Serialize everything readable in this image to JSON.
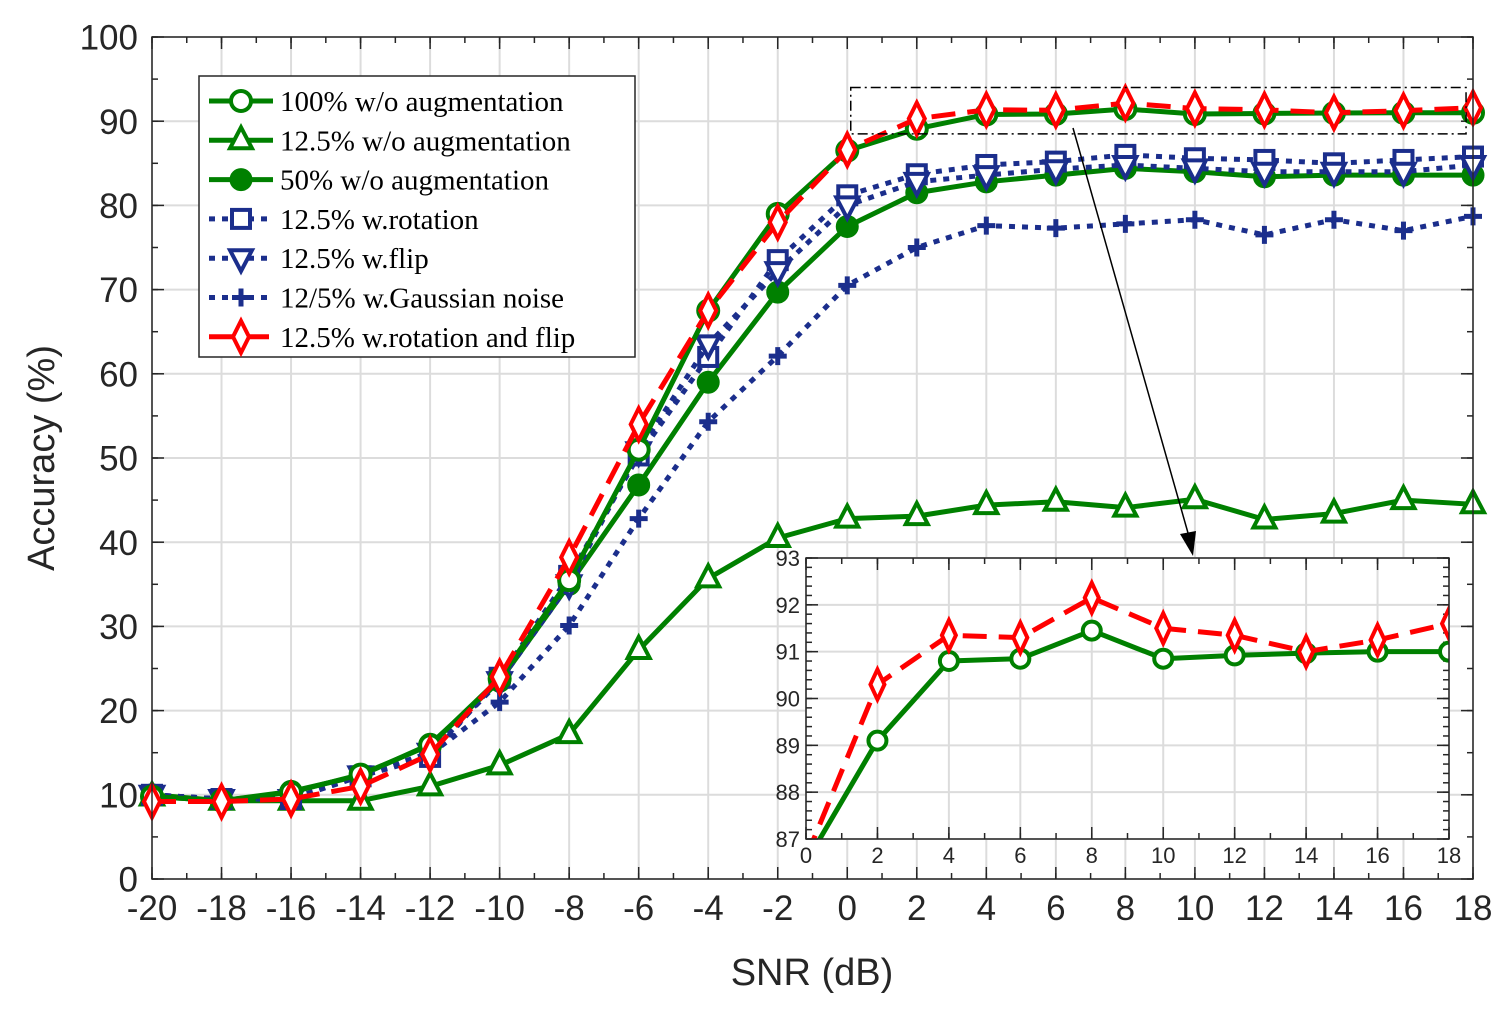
{
  "chart_data": {
    "type": "line",
    "xlabel": "SNR (dB)",
    "ylabel": "Accuracy (%)",
    "xlim": [
      -20,
      18
    ],
    "ylim": [
      0,
      100
    ],
    "xticks": [
      -20,
      -18,
      -16,
      -14,
      -12,
      -10,
      -8,
      -6,
      -4,
      -2,
      0,
      2,
      4,
      6,
      8,
      10,
      12,
      14,
      16,
      18
    ],
    "yticks": [
      0,
      10,
      20,
      30,
      40,
      50,
      60,
      70,
      80,
      90,
      100
    ],
    "grid": true,
    "legend_position": "top-left",
    "x": [
      -20,
      -18,
      -16,
      -14,
      -12,
      -10,
      -8,
      -6,
      -4,
      -2,
      0,
      2,
      4,
      6,
      8,
      10,
      12,
      14,
      16,
      18
    ],
    "series": [
      {
        "name": "100% w/o augmentation",
        "color": "#008000",
        "line": "solid",
        "marker": "circle-open",
        "values": [
          9.8,
          9.3,
          10.3,
          12.4,
          15.9,
          23.8,
          35.5,
          51,
          67.5,
          79,
          86.5,
          89.1,
          90.8,
          90.85,
          91.45,
          90.85,
          90.92,
          90.97,
          91.0,
          91.0
        ]
      },
      {
        "name": "12.5% w/o augmentation",
        "color": "#008000",
        "line": "solid",
        "marker": "triangle-up-open",
        "values": [
          9.8,
          9.3,
          9.3,
          9.3,
          11,
          13.5,
          17.2,
          27.2,
          35.7,
          40.5,
          42.8,
          43.1,
          44.4,
          44.8,
          44.1,
          45.1,
          42.7,
          43.4,
          45,
          44.5
        ]
      },
      {
        "name": "50% w/o augmentation",
        "color": "#008000",
        "line": "solid",
        "marker": "circle-filled",
        "values": [
          10,
          9.3,
          10.4,
          12.3,
          16,
          23.5,
          35,
          46.8,
          59,
          69.7,
          77.5,
          81.5,
          82.8,
          83.6,
          84.4,
          84,
          83.4,
          83.6,
          83.6,
          83.6
        ]
      },
      {
        "name": "12.5% w.rotation",
        "color": "#1b2e8c",
        "line": "dotted",
        "marker": "square-open",
        "values": [
          10,
          9.5,
          9.5,
          12.2,
          14.5,
          23.9,
          36,
          50.3,
          62,
          73.5,
          81.2,
          83.7,
          84.8,
          85.2,
          86,
          85.6,
          85.4,
          85,
          85.4,
          85.8
        ]
      },
      {
        "name": "12.5% w.flip",
        "color": "#1b2e8c",
        "line": "dotted",
        "marker": "triangle-down-open",
        "values": [
          10,
          9.5,
          9.5,
          12.3,
          15,
          23.5,
          35,
          50.8,
          63.5,
          72.2,
          80,
          82.8,
          83.6,
          84.3,
          84.8,
          84.4,
          84,
          84,
          84,
          84.8
        ]
      },
      {
        "name": "12/5% w.Gaussian noise",
        "color": "#1b2e8c",
        "line": "dotted",
        "marker": "plus",
        "values": [
          10,
          9.5,
          9.5,
          12.3,
          14.8,
          21,
          30.1,
          42.8,
          54.3,
          62.1,
          70.5,
          75,
          77.6,
          77.3,
          77.8,
          78.3,
          76.5,
          78.3,
          77,
          78.7
        ]
      },
      {
        "name": "12.5% w.rotation and flip",
        "color": "#ff0000",
        "line": "dashed",
        "marker": "diamond-open",
        "values": [
          9.2,
          9.2,
          9.5,
          11,
          14.8,
          24,
          38.2,
          54,
          67.5,
          78,
          86.6,
          90.3,
          91.35,
          91.3,
          92.15,
          91.5,
          91.35,
          91.0,
          91.25,
          91.6
        ]
      }
    ],
    "inset": {
      "xlim": [
        0,
        18
      ],
      "ylim": [
        87,
        93
      ],
      "xticks": [
        0,
        2,
        4,
        6,
        8,
        10,
        12,
        14,
        16,
        18
      ],
      "yticks": [
        87,
        88,
        89,
        90,
        91,
        92,
        93
      ],
      "series_shown": [
        0,
        6
      ]
    }
  }
}
